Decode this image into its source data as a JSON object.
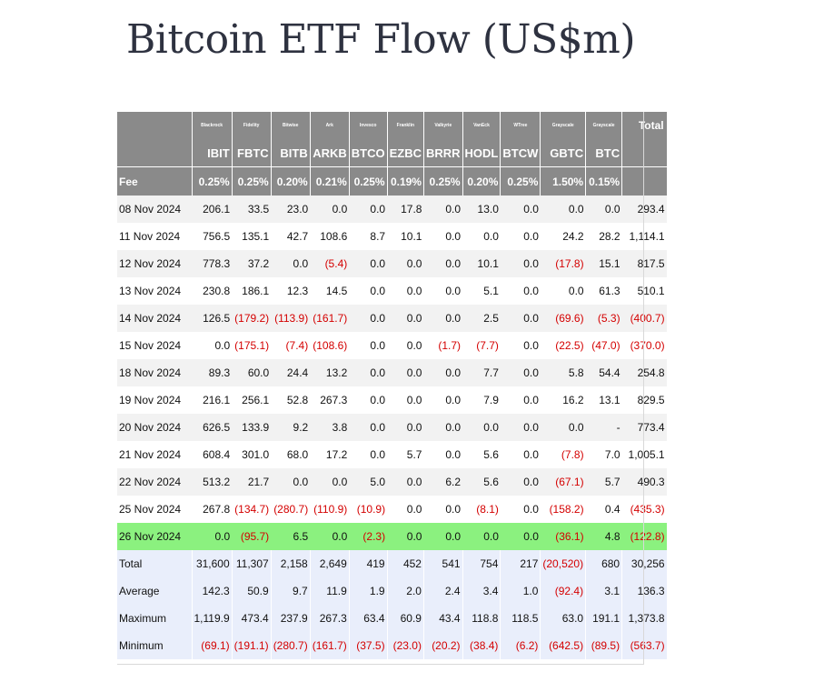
{
  "title": "Bitcoin ETF Flow (US$m)",
  "colors": {
    "header_bg": "#8a8a8a",
    "highlight": "#8bf17f",
    "negative": "#d40000",
    "stats_bg": "#e9eefb"
  },
  "issuers": [
    "Blackrock",
    "Fidelity",
    "Bitwise",
    "Ark",
    "Invesco",
    "Franklin",
    "Valkyrie",
    "VanEck",
    "WTree",
    "Grayscale",
    "Grayscale"
  ],
  "total_label": "Total",
  "tickers": [
    "IBIT",
    "FBTC",
    "BITB",
    "ARKB",
    "BTCO",
    "EZBC",
    "BRRR",
    "HODL",
    "BTCW",
    "GBTC",
    "BTC"
  ],
  "fee_label": "Fee",
  "fees": [
    "0.25%",
    "0.25%",
    "0.20%",
    "0.21%",
    "0.25%",
    "0.19%",
    "0.25%",
    "0.20%",
    "0.25%",
    "1.50%",
    "0.15%"
  ],
  "rows": [
    {
      "date": "08 Nov 2024",
      "values": [
        "206.1",
        "33.5",
        "23.0",
        "0.0",
        "0.0",
        "17.8",
        "0.0",
        "13.0",
        "0.0",
        "0.0",
        "0.0",
        "293.4"
      ]
    },
    {
      "date": "11 Nov 2024",
      "values": [
        "756.5",
        "135.1",
        "42.7",
        "108.6",
        "8.7",
        "10.1",
        "0.0",
        "0.0",
        "0.0",
        "24.2",
        "28.2",
        "1,114.1"
      ]
    },
    {
      "date": "12 Nov 2024",
      "values": [
        "778.3",
        "37.2",
        "0.0",
        "(5.4)",
        "0.0",
        "0.0",
        "0.0",
        "10.1",
        "0.0",
        "(17.8)",
        "15.1",
        "817.5"
      ]
    },
    {
      "date": "13 Nov 2024",
      "values": [
        "230.8",
        "186.1",
        "12.3",
        "14.5",
        "0.0",
        "0.0",
        "0.0",
        "5.1",
        "0.0",
        "0.0",
        "61.3",
        "510.1"
      ]
    },
    {
      "date": "14 Nov 2024",
      "values": [
        "126.5",
        "(179.2)",
        "(113.9)",
        "(161.7)",
        "0.0",
        "0.0",
        "0.0",
        "2.5",
        "0.0",
        "(69.6)",
        "(5.3)",
        "(400.7)"
      ]
    },
    {
      "date": "15 Nov 2024",
      "values": [
        "0.0",
        "(175.1)",
        "(7.4)",
        "(108.6)",
        "0.0",
        "0.0",
        "(1.7)",
        "(7.7)",
        "0.0",
        "(22.5)",
        "(47.0)",
        "(370.0)"
      ]
    },
    {
      "date": "18 Nov 2024",
      "values": [
        "89.3",
        "60.0",
        "24.4",
        "13.2",
        "0.0",
        "0.0",
        "0.0",
        "7.7",
        "0.0",
        "5.8",
        "54.4",
        "254.8"
      ]
    },
    {
      "date": "19 Nov 2024",
      "values": [
        "216.1",
        "256.1",
        "52.8",
        "267.3",
        "0.0",
        "0.0",
        "0.0",
        "7.9",
        "0.0",
        "16.2",
        "13.1",
        "829.5"
      ]
    },
    {
      "date": "20 Nov 2024",
      "values": [
        "626.5",
        "133.9",
        "9.2",
        "3.8",
        "0.0",
        "0.0",
        "0.0",
        "0.0",
        "0.0",
        "0.0",
        "-",
        "773.4"
      ]
    },
    {
      "date": "21 Nov 2024",
      "values": [
        "608.4",
        "301.0",
        "68.0",
        "17.2",
        "0.0",
        "5.7",
        "0.0",
        "5.6",
        "0.0",
        "(7.8)",
        "7.0",
        "1,005.1"
      ]
    },
    {
      "date": "22 Nov 2024",
      "values": [
        "513.2",
        "21.7",
        "0.0",
        "0.0",
        "5.0",
        "0.0",
        "6.2",
        "5.6",
        "0.0",
        "(67.1)",
        "5.7",
        "490.3"
      ]
    },
    {
      "date": "25 Nov 2024",
      "values": [
        "267.8",
        "(134.7)",
        "(280.7)",
        "(110.9)",
        "(10.9)",
        "0.0",
        "0.0",
        "(8.1)",
        "0.0",
        "(158.2)",
        "0.4",
        "(435.3)"
      ]
    },
    {
      "date": "26 Nov 2024",
      "values": [
        "0.0",
        "(95.7)",
        "6.5",
        "0.0",
        "(2.3)",
        "0.0",
        "0.0",
        "0.0",
        "0.0",
        "(36.1)",
        "4.8",
        "(122.8)"
      ],
      "highlight": true
    }
  ],
  "stats": [
    {
      "label": "Total",
      "values": [
        "31,600",
        "11,307",
        "2,158",
        "2,649",
        "419",
        "452",
        "541",
        "754",
        "217",
        "(20,520)",
        "680",
        "30,256"
      ]
    },
    {
      "label": "Average",
      "values": [
        "142.3",
        "50.9",
        "9.7",
        "11.9",
        "1.9",
        "2.0",
        "2.4",
        "3.4",
        "1.0",
        "(92.4)",
        "3.1",
        "136.3"
      ]
    },
    {
      "label": "Maximum",
      "values": [
        "1,119.9",
        "473.4",
        "237.9",
        "267.3",
        "63.4",
        "60.9",
        "43.4",
        "118.8",
        "118.5",
        "63.0",
        "191.1",
        "1,373.8"
      ]
    },
    {
      "label": "Minimum",
      "values": [
        "(69.1)",
        "(191.1)",
        "(280.7)",
        "(161.7)",
        "(37.5)",
        "(23.0)",
        "(20.2)",
        "(38.4)",
        "(6.2)",
        "(642.5)",
        "(89.5)",
        "(563.7)"
      ]
    }
  ]
}
